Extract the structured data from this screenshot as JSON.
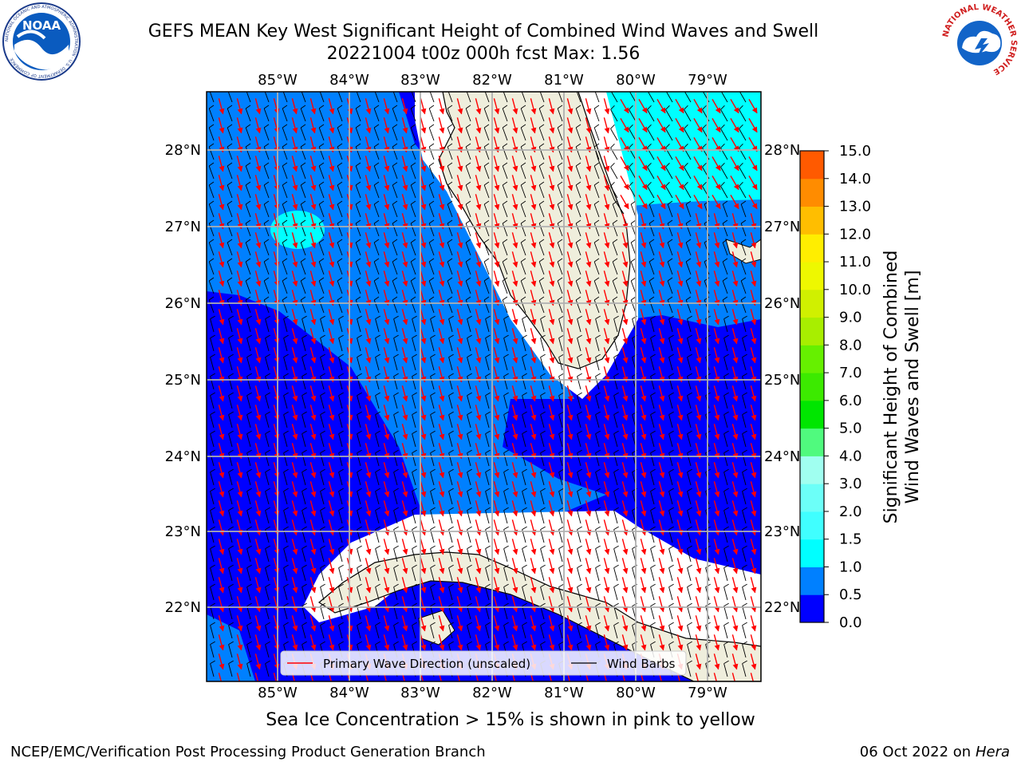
{
  "header": {
    "title_line1": "GEFS MEAN Key West Significant Height of Combined Wind Waves and Swell",
    "title_line2": "20221004 t00z 000h fcst   Max: 1.56"
  },
  "logos": {
    "noaa_text": "NOAA",
    "noaa_ring_text": "NATIONAL OCEANIC AND ATMOSPHERIC ADMINISTRATION · U.S. DEPARTMENT OF COMMERCE",
    "nws_ring_text": "NATIONAL WEATHER SERVICE"
  },
  "map": {
    "lon_labels": [
      "85°W",
      "84°W",
      "83°W",
      "82°W",
      "81°W",
      "80°W",
      "79°W"
    ],
    "lat_labels": [
      "28°N",
      "27°N",
      "26°N",
      "25°N",
      "24°N",
      "23°N",
      "22°N"
    ],
    "land_color": "#efeedc",
    "grid_color": "#b0b0b0"
  },
  "legend": {
    "wave_direction_label": "Primary Wave Direction (unscaled)",
    "wind_barbs_label": "Wind Barbs"
  },
  "colorbar": {
    "label": "Significant Height of Combined Wind Waves and Swell [m]",
    "label_line1": "Significant Height of Combined",
    "label_line2": "Wind Waves and Swell [m]",
    "ticks": [
      "15.0",
      "14.0",
      "13.0",
      "12.0",
      "11.0",
      "10.0",
      "9.0",
      "8.0",
      "7.0",
      "6.0",
      "5.0",
      "4.0",
      "3.0",
      "2.0",
      "1.5",
      "1.0",
      "0.5",
      "0.0"
    ],
    "colors": [
      "#0000ff",
      "#0080ff",
      "#00ffff",
      "#40ffff",
      "#6cfff8",
      "#a0fff0",
      "#50fa7e",
      "#00e600",
      "#3cea00",
      "#66f000",
      "#a8ee00",
      "#d0f000",
      "#eef800",
      "#ffee00",
      "#ffbe00",
      "#ff8c00",
      "#ff5a00",
      "#ff2800",
      "#ff0000"
    ]
  },
  "notes": {
    "ice_note": "Sea Ice Concentration > 15% is shown in pink to yellow"
  },
  "footer": {
    "left": "NCEP/EMC/Verification Post Processing Product Generation Branch",
    "date": "06 Oct 2022 on ",
    "machine": "Hera"
  }
}
